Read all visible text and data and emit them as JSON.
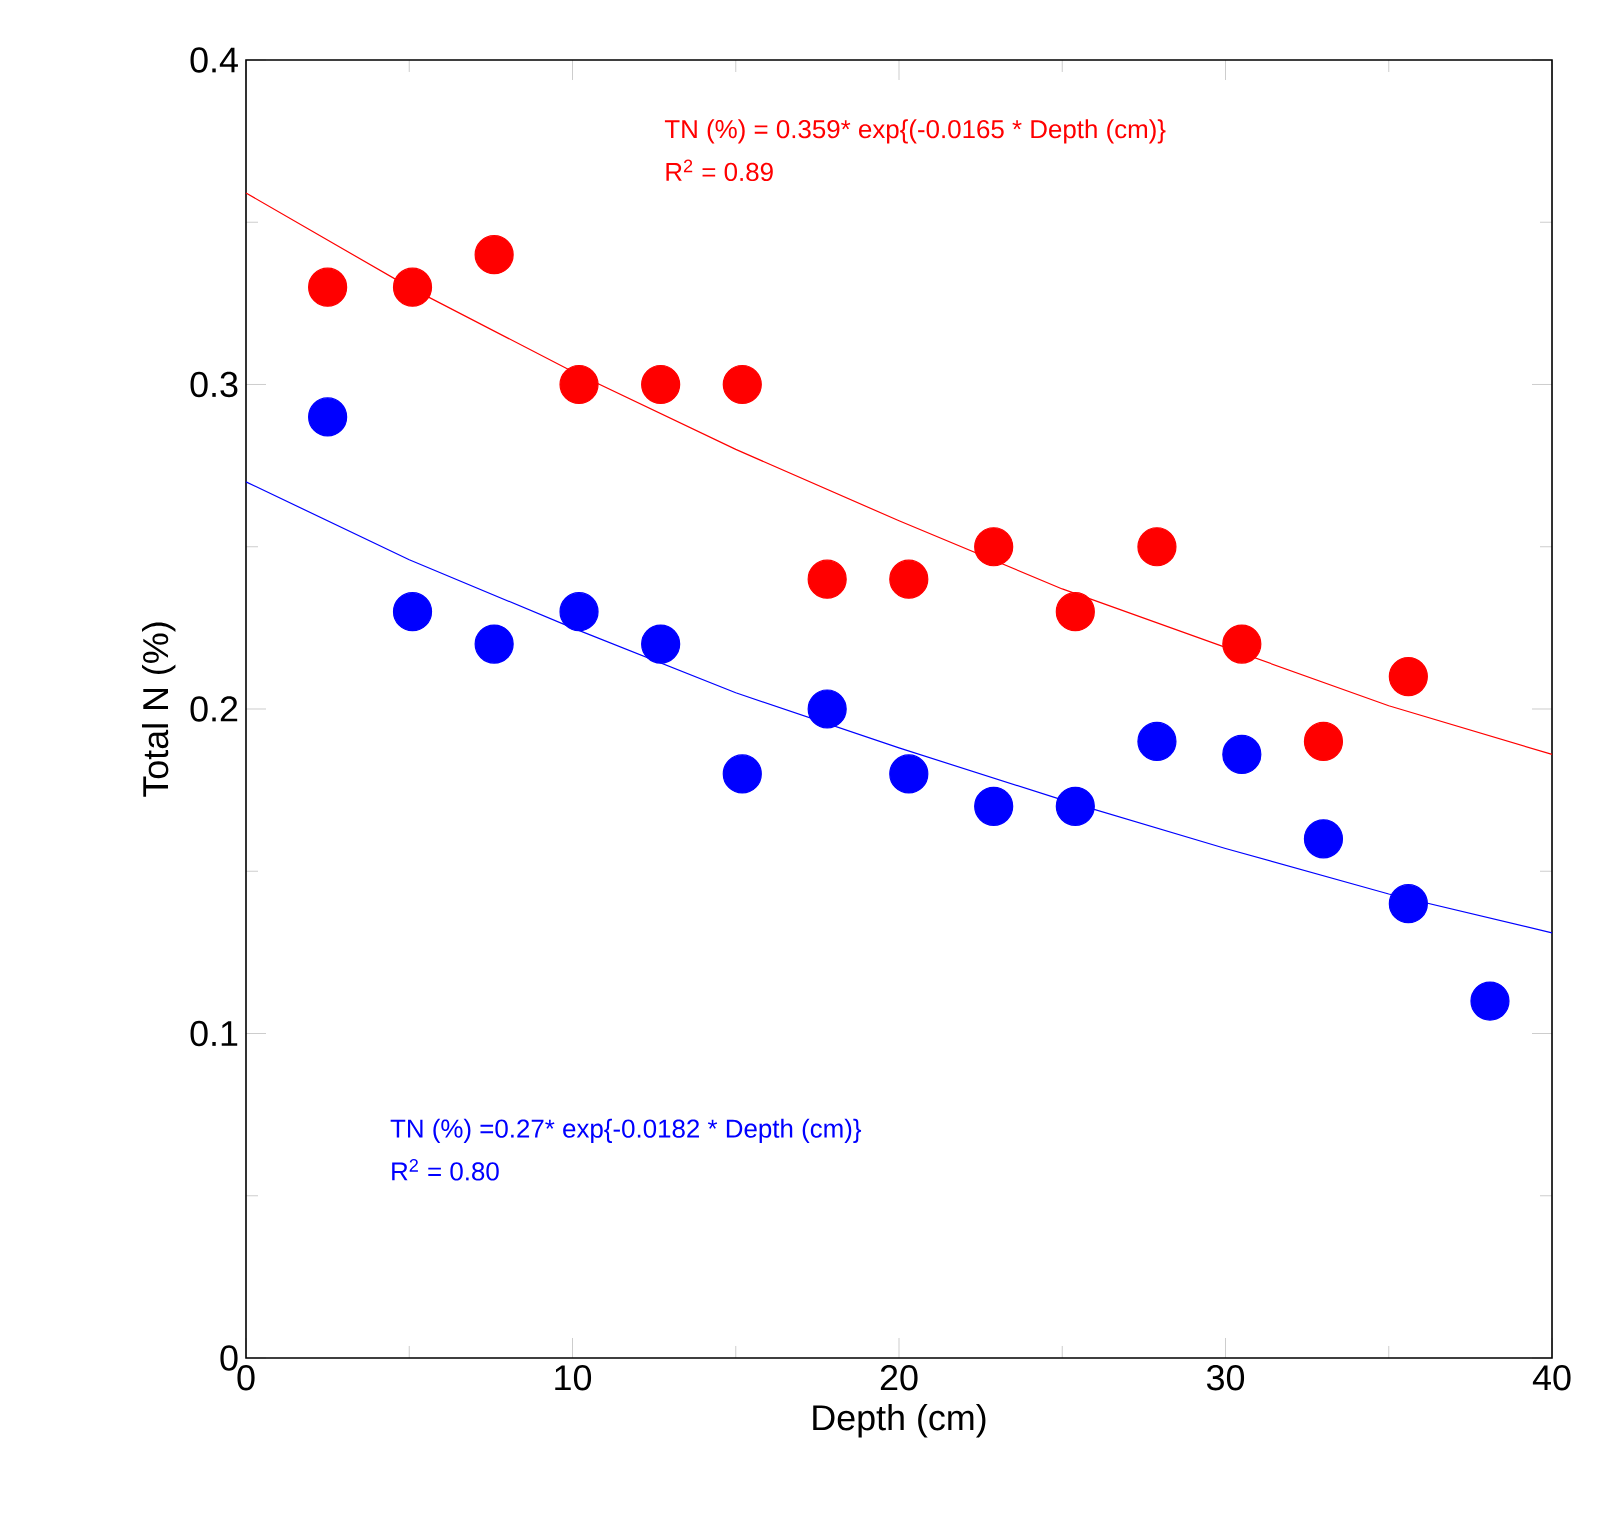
{
  "chart_data": {
    "type": "scatter",
    "xlabel": "Depth (cm)",
    "ylabel": "Total N (%)",
    "xlim": [
      0,
      40
    ],
    "ylim": [
      0,
      0.4
    ],
    "xticks": [
      0,
      10,
      20,
      30,
      40
    ],
    "yticks": [
      0,
      0.1,
      0.2,
      0.3,
      0.4
    ],
    "grid": false,
    "marker": "circle",
    "series": [
      {
        "color": "#ff0000",
        "x": [
          2.5,
          5.1,
          7.6,
          10.2,
          12.7,
          15.2,
          17.8,
          20.3,
          22.9,
          25.4,
          27.9,
          30.5,
          33,
          35.6
        ],
        "values": [
          0.33,
          0.33,
          0.34,
          0.3,
          0.3,
          0.3,
          0.24,
          0.24,
          0.25,
          0.23,
          0.25,
          0.22,
          0.19,
          0.21
        ]
      },
      {
        "color": "#0000ff",
        "x": [
          2.5,
          5.1,
          7.6,
          10.2,
          12.7,
          15.2,
          17.8,
          20.3,
          22.9,
          25.4,
          27.9,
          30.5,
          33,
          35.6,
          38.1
        ],
        "values": [
          0.29,
          0.23,
          0.22,
          0.23,
          0.22,
          0.18,
          0.2,
          0.18,
          0.17,
          0.17,
          0.19,
          0.186,
          0.16,
          0.14,
          0.11
        ]
      },
      {
        "type": "line",
        "marker": "none",
        "color": "#ff0000",
        "x": [
          0,
          5,
          10,
          15,
          20,
          25,
          30,
          35,
          40
        ],
        "values": [
          0.359,
          0.33,
          0.304,
          0.28,
          0.258,
          0.237,
          0.219,
          0.201,
          0.186
        ]
      },
      {
        "type": "line",
        "marker": "none",
        "color": "#0000ff",
        "x": [
          0,
          5,
          10,
          15,
          20,
          25,
          30,
          35,
          40
        ],
        "values": [
          0.27,
          0.246,
          0.225,
          0.205,
          0.188,
          0.172,
          0.157,
          0.143,
          0.131
        ]
      }
    ],
    "annotations": [
      "TN (%) = 0.359* exp{(-0.0165 * Depth (cm)}",
      "R$^{2}$ = 0.89",
      "TN (%) =0.27* exp{-0.0182 * Depth (cm)}",
      "R$^{2}$ = 0.80"
    ]
  }
}
